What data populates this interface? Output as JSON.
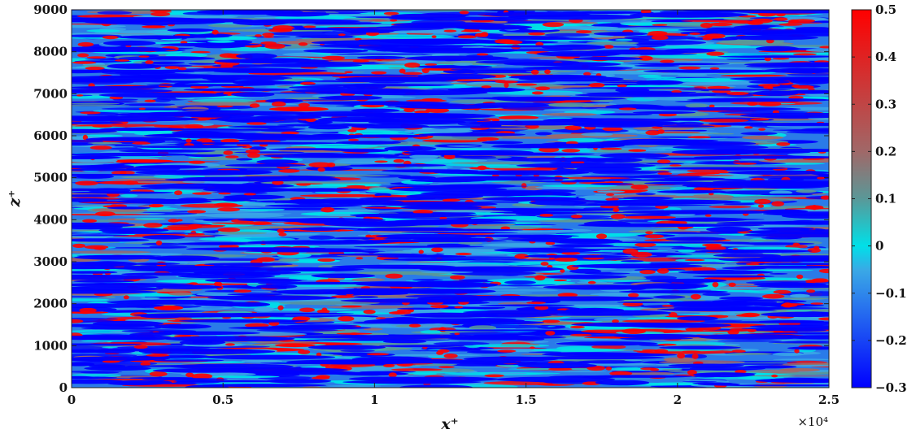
{
  "chart_data": {
    "type": "heatmap",
    "title": "",
    "xlabel": "x⁺",
    "ylabel": "z⁺",
    "xlim": [
      0,
      25000
    ],
    "ylim": [
      0,
      9000
    ],
    "x_ticks": [
      0,
      5000,
      10000,
      15000,
      20000,
      25000
    ],
    "x_tick_labels": [
      "0",
      "0.5",
      "1",
      "1.5",
      "2",
      "2.5"
    ],
    "x_multiplier_label": "×10⁴",
    "y_ticks": [
      0,
      1000,
      2000,
      3000,
      4000,
      5000,
      6000,
      7000,
      8000,
      9000
    ],
    "y_tick_labels": [
      "0",
      "1000",
      "2000",
      "3000",
      "4000",
      "5000",
      "6000",
      "7000",
      "8000",
      "9000"
    ],
    "colorbar": {
      "range": [
        -0.3,
        0.5
      ],
      "ticks": [
        -0.3,
        -0.2,
        -0.1,
        0,
        0.1,
        0.2,
        0.3,
        0.4,
        0.5
      ],
      "tick_labels": [
        "−0.3",
        "−0.2",
        "−0.1",
        "0",
        "0.1",
        "0.2",
        "0.3",
        "0.4",
        "0.5"
      ],
      "colormap": [
        {
          "value": -0.3,
          "color": "#0000ff"
        },
        {
          "value": -0.05,
          "color": "#3aa8e6"
        },
        {
          "value": 0.0,
          "color": "#00e0e8"
        },
        {
          "value": 0.1,
          "color": "#5a9898"
        },
        {
          "value": 0.2,
          "color": "#a06868"
        },
        {
          "value": 0.5,
          "color": "#ff0000"
        }
      ]
    },
    "field_description": "streamwise-elongated streaks of fluctuating quantity; mostly blue/cyan with scattered red patches",
    "grid": false
  }
}
